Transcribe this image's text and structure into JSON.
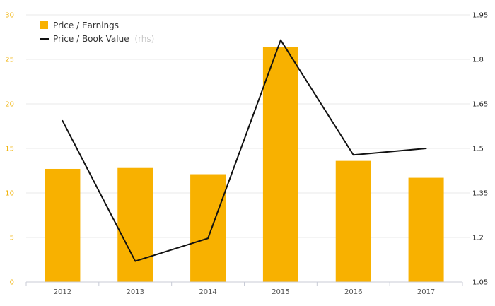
{
  "colors": {
    "bar": "#f8b100",
    "line": "#111111",
    "left_ticks": "#f0b000",
    "right_ticks": "#222222"
  },
  "chart_data": {
    "type": "bar",
    "categories": [
      "2012",
      "2013",
      "2014",
      "2015",
      "2016",
      "2017"
    ],
    "series": [
      {
        "name": "Price / Earnings",
        "type": "bar",
        "axis": "left",
        "values": [
          12.7,
          12.8,
          12.1,
          26.4,
          13.6,
          11.7
        ]
      },
      {
        "name": "Price / Book Value",
        "name_suffix": "(rhs)",
        "type": "line",
        "axis": "right",
        "values": [
          1.593,
          1.12,
          1.197,
          1.865,
          1.478,
          1.5
        ]
      }
    ],
    "y_left": {
      "range": [
        0,
        30
      ],
      "ticks": [
        "0",
        "5",
        "10",
        "15",
        "20",
        "25",
        "30"
      ]
    },
    "y_right": {
      "range": [
        1.05,
        1.95
      ],
      "ticks": [
        "1.05",
        "1.2",
        "1.35",
        "1.5",
        "1.65",
        "1.8",
        "1.95"
      ]
    },
    "grid": true,
    "legend_position": "top-left"
  }
}
